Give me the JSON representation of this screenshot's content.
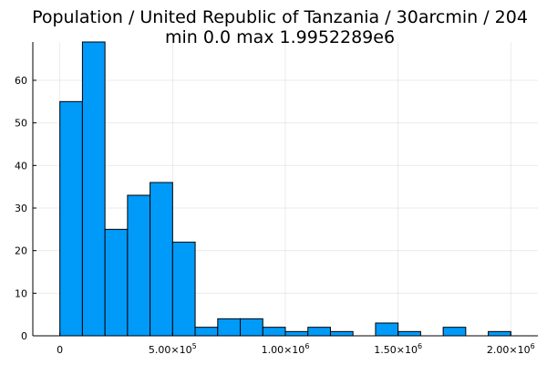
{
  "chart_data": {
    "type": "bar",
    "title": "Population / United Republic of Tanzania / 30arcmin / 204",
    "subtitle": "min 0.0  max 1.9952289e6",
    "xlabel": "",
    "ylabel": "",
    "bin_width": 100000,
    "bins": [
      {
        "start": 0,
        "end": 100000,
        "count": 55
      },
      {
        "start": 100000,
        "end": 200000,
        "count": 69
      },
      {
        "start": 200000,
        "end": 300000,
        "count": 25
      },
      {
        "start": 300000,
        "end": 400000,
        "count": 33
      },
      {
        "start": 400000,
        "end": 500000,
        "count": 36
      },
      {
        "start": 500000,
        "end": 600000,
        "count": 22
      },
      {
        "start": 600000,
        "end": 700000,
        "count": 2
      },
      {
        "start": 700000,
        "end": 800000,
        "count": 4
      },
      {
        "start": 800000,
        "end": 900000,
        "count": 4
      },
      {
        "start": 900000,
        "end": 1000000,
        "count": 2
      },
      {
        "start": 1000000,
        "end": 1100000,
        "count": 1
      },
      {
        "start": 1100000,
        "end": 1200000,
        "count": 2
      },
      {
        "start": 1200000,
        "end": 1300000,
        "count": 1
      },
      {
        "start": 1400000,
        "end": 1500000,
        "count": 3
      },
      {
        "start": 1500000,
        "end": 1600000,
        "count": 1
      },
      {
        "start": 1700000,
        "end": 1800000,
        "count": 2
      },
      {
        "start": 1900000,
        "end": 2000000,
        "count": 1
      }
    ],
    "xlim": [
      -120000,
      2120000
    ],
    "ylim": [
      0,
      69
    ],
    "x_ticks": [
      {
        "value": 0,
        "label": "0",
        "exp": ""
      },
      {
        "value": 500000,
        "label": "5.00×10",
        "exp": "5"
      },
      {
        "value": 1000000,
        "label": "1.00×10",
        "exp": "6"
      },
      {
        "value": 1500000,
        "label": "1.50×10",
        "exp": "6"
      },
      {
        "value": 2000000,
        "label": "2.00×10",
        "exp": "6"
      }
    ],
    "y_ticks": [
      0,
      10,
      20,
      30,
      40,
      50,
      60
    ],
    "grid": true,
    "legend": "none",
    "bar_color": "#009af9",
    "bar_edge_color": "#000000"
  }
}
